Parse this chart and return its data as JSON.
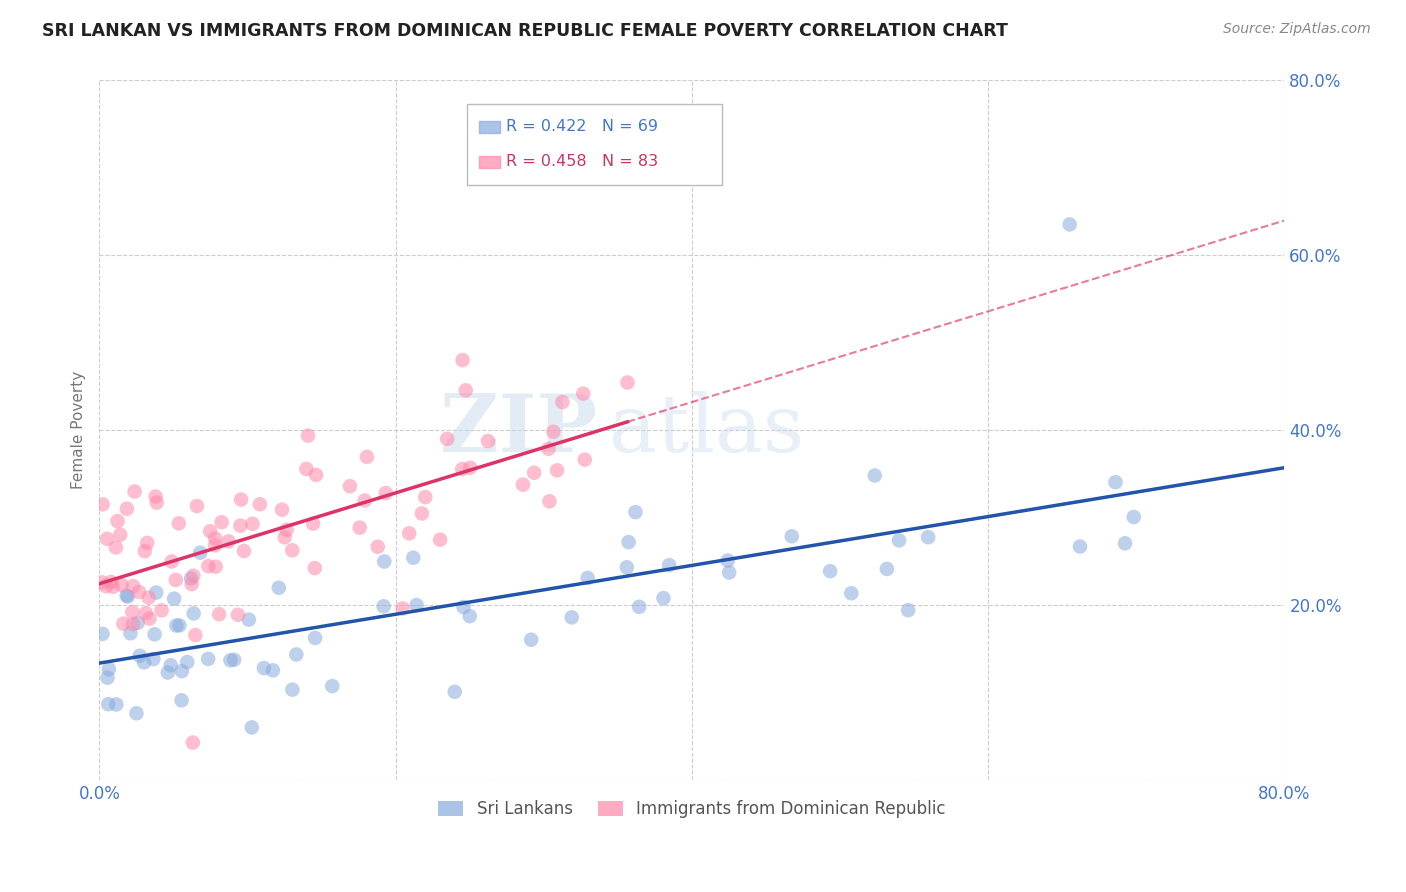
{
  "title": "SRI LANKAN VS IMMIGRANTS FROM DOMINICAN REPUBLIC FEMALE POVERTY CORRELATION CHART",
  "source": "Source: ZipAtlas.com",
  "ylabel": "Female Poverty",
  "xlim": [
    0.0,
    0.8
  ],
  "ylim": [
    0.0,
    0.8
  ],
  "blue_color": "#88aadd",
  "blue_color_edge": "#88aadd",
  "pink_color": "#ff88aa",
  "pink_color_edge": "#ff88aa",
  "blue_line_color": "#2255aa",
  "pink_line_color": "#dd3366",
  "legend_blue_r": "R = 0.422",
  "legend_blue_n": "N = 69",
  "legend_pink_r": "R = 0.458",
  "legend_pink_n": "N = 83",
  "legend_label_blue": "Sri Lankans",
  "legend_label_pink": "Immigrants from Dominican Republic",
  "watermark_zip": "ZIP",
  "watermark_atlas": "atlas",
  "background_color": "#ffffff",
  "grid_color": "#cccccc",
  "title_color": "#222222",
  "source_color": "#888888",
  "axis_label_color": "#4477cc",
  "ylabel_color": "#777777"
}
